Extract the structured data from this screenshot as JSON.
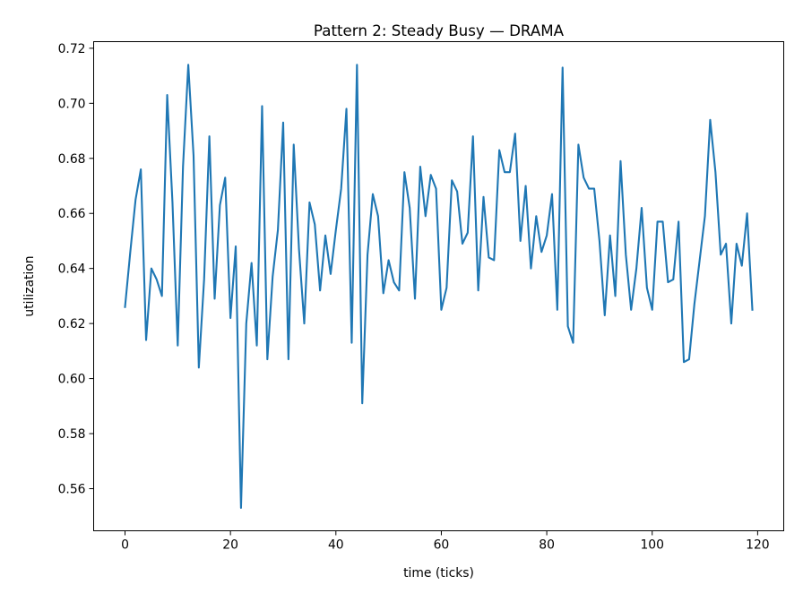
{
  "chart_data": {
    "type": "line",
    "title": "Pattern 2: Steady Busy — DRAMA",
    "xlabel": "time (ticks)",
    "ylabel": "utilization",
    "xlim": [
      -5.95,
      124.95
    ],
    "ylim": [
      0.5447,
      0.7224
    ],
    "xticks": [
      0,
      20,
      40,
      60,
      80,
      100,
      120
    ],
    "xtick_labels": [
      "0",
      "20",
      "40",
      "60",
      "80",
      "100",
      "120"
    ],
    "yticks": [
      0.56,
      0.58,
      0.6,
      0.62,
      0.64,
      0.66,
      0.68,
      0.7,
      0.72
    ],
    "ytick_labels": [
      "0.56",
      "0.58",
      "0.60",
      "0.62",
      "0.64",
      "0.66",
      "0.68",
      "0.70",
      "0.72"
    ],
    "grid": false,
    "legend": "none",
    "series": [
      {
        "color": "#1f77b4",
        "x": [
          0,
          1,
          2,
          3,
          4,
          5,
          6,
          7,
          8,
          9,
          10,
          11,
          12,
          13,
          14,
          15,
          16,
          17,
          18,
          19,
          20,
          21,
          22,
          23,
          24,
          25,
          26,
          27,
          28,
          29,
          30,
          31,
          32,
          33,
          34,
          35,
          36,
          37,
          38,
          39,
          40,
          41,
          42,
          43,
          44,
          45,
          46,
          47,
          48,
          49,
          50,
          51,
          52,
          53,
          54,
          55,
          56,
          57,
          58,
          59,
          60,
          61,
          62,
          63,
          64,
          65,
          66,
          67,
          68,
          69,
          70,
          71,
          72,
          73,
          74,
          75,
          76,
          77,
          78,
          79,
          80,
          81,
          82,
          83,
          84,
          85,
          86,
          87,
          88,
          89,
          90,
          91,
          92,
          93,
          94,
          95,
          96,
          97,
          98,
          99,
          100,
          101,
          102,
          103,
          104,
          105,
          106,
          107,
          108,
          109,
          110,
          111,
          112,
          113,
          114,
          115,
          116,
          117,
          118,
          119
        ],
        "values": [
          0.626,
          0.646,
          0.665,
          0.676,
          0.614,
          0.64,
          0.636,
          0.63,
          0.703,
          0.664,
          0.612,
          0.677,
          0.714,
          0.681,
          0.604,
          0.636,
          0.688,
          0.629,
          0.663,
          0.673,
          0.622,
          0.648,
          0.553,
          0.62,
          0.642,
          0.612,
          0.699,
          0.607,
          0.637,
          0.654,
          0.693,
          0.607,
          0.685,
          0.647,
          0.62,
          0.664,
          0.656,
          0.632,
          0.652,
          0.638,
          0.654,
          0.669,
          0.698,
          0.613,
          0.714,
          0.591,
          0.645,
          0.667,
          0.659,
          0.631,
          0.643,
          0.635,
          0.632,
          0.675,
          0.662,
          0.629,
          0.677,
          0.659,
          0.674,
          0.669,
          0.625,
          0.633,
          0.672,
          0.668,
          0.649,
          0.653,
          0.688,
          0.632,
          0.666,
          0.644,
          0.643,
          0.683,
          0.675,
          0.675,
          0.689,
          0.65,
          0.67,
          0.64,
          0.659,
          0.646,
          0.652,
          0.667,
          0.625,
          0.713,
          0.619,
          0.613,
          0.685,
          0.673,
          0.669,
          0.669,
          0.65,
          0.623,
          0.652,
          0.63,
          0.679,
          0.645,
          0.625,
          0.64,
          0.662,
          0.633,
          0.625,
          0.657,
          0.657,
          0.635,
          0.636,
          0.657,
          0.606,
          0.607,
          0.627,
          0.643,
          0.659,
          0.694,
          0.675,
          0.645,
          0.649,
          0.62,
          0.649,
          0.641,
          0.66,
          0.625
        ]
      }
    ]
  }
}
